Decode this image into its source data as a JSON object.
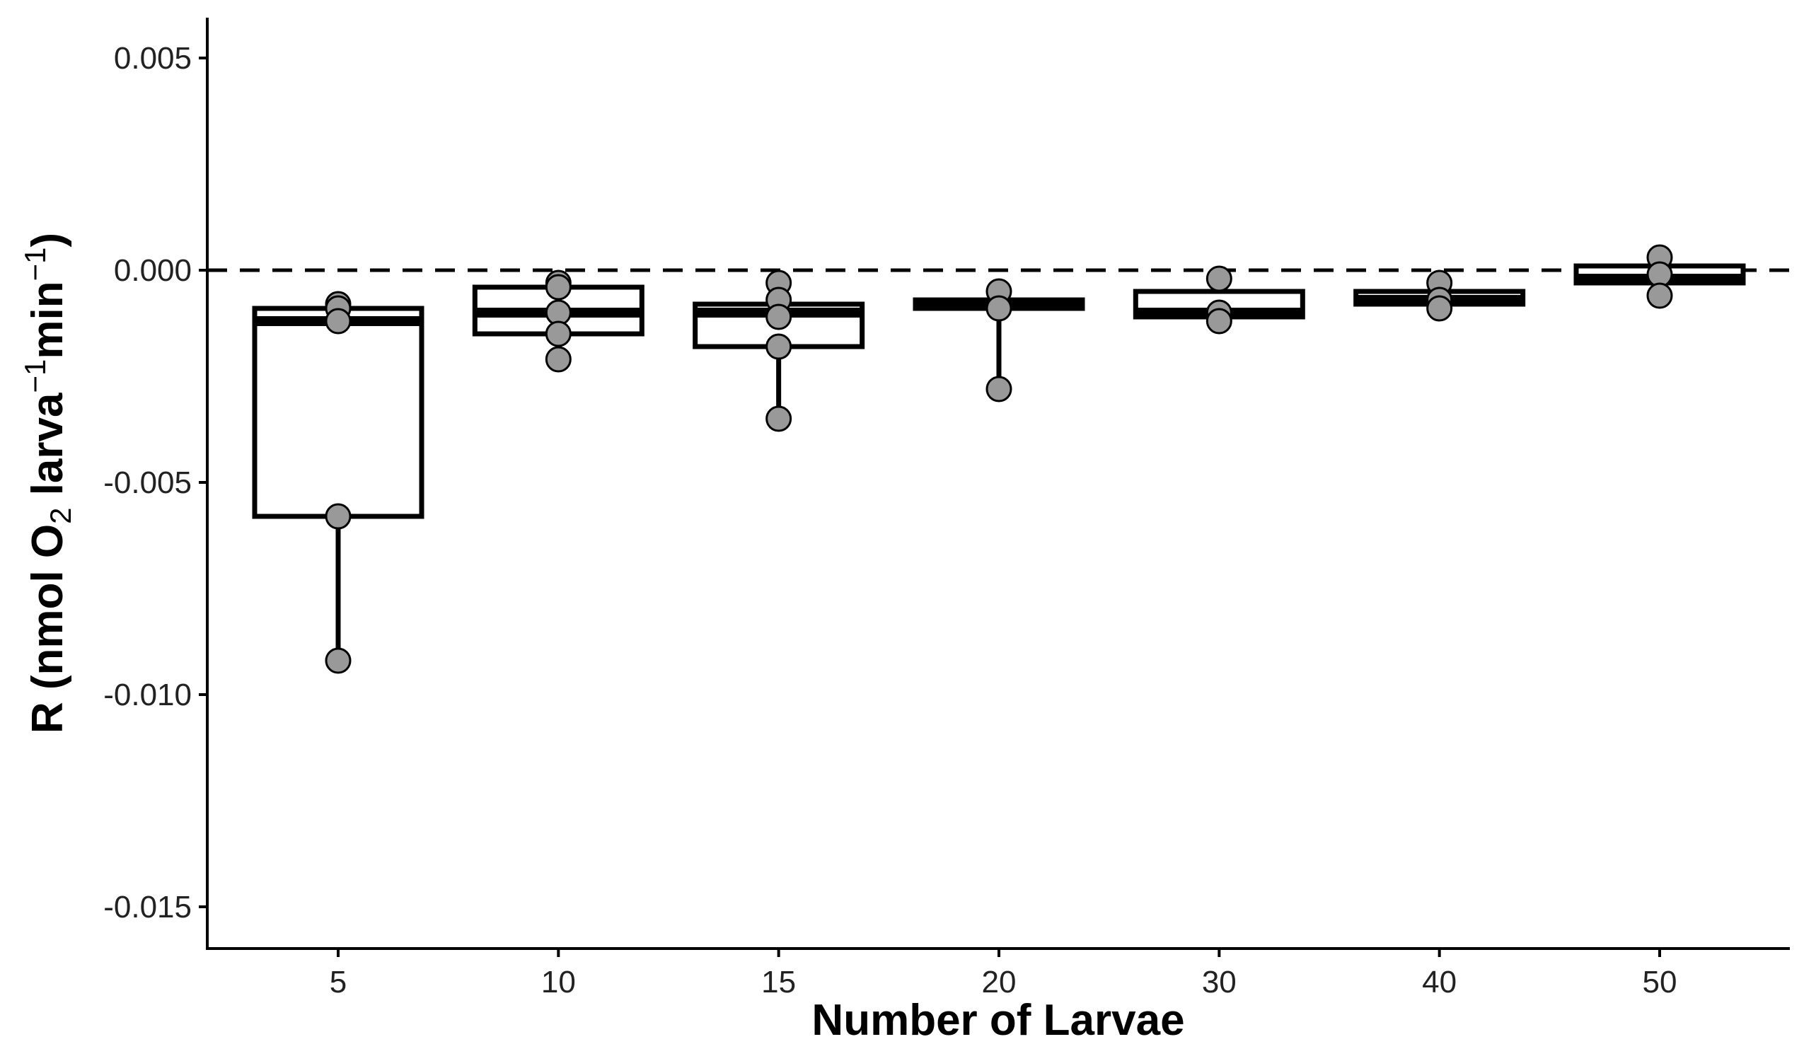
{
  "chart_data": {
    "type": "boxplot",
    "xlabel": "Number of Larvae",
    "ylabel": {
      "main": "R (nmol O",
      "sub": "2",
      "mid": " larva",
      "sup1": "−1",
      "mid2": "min",
      "sup2": "−1",
      "end": ")"
    },
    "ylim": [
      -0.016,
      0.006
    ],
    "yticks": [
      0.005,
      0.0,
      -0.005,
      -0.01,
      -0.015
    ],
    "ytick_labels": [
      "0.005",
      "0.000",
      "-0.005",
      "-0.010",
      "-0.015"
    ],
    "categories": [
      "5",
      "10",
      "15",
      "20",
      "30",
      "40",
      "50"
    ],
    "reference_line": {
      "y": 0.0,
      "style": "dashed"
    },
    "grid": false,
    "boxes": [
      {
        "category": "5",
        "q1": -0.0058,
        "median": -0.0012,
        "q3": -0.0009,
        "whisker_low": -0.0092,
        "whisker_high": -0.0008
      },
      {
        "category": "10",
        "q1": -0.0015,
        "median": -0.001,
        "q3": -0.0004,
        "whisker_low": -0.0021,
        "whisker_high": -0.0003
      },
      {
        "category": "15",
        "q1": -0.0018,
        "median": -0.001,
        "q3": -0.0008,
        "whisker_low": -0.0035,
        "whisker_high": -0.0003
      },
      {
        "category": "20",
        "q1": -0.0009,
        "median": -0.0008,
        "q3": -0.0007,
        "whisker_low": -0.0028,
        "whisker_high": -0.0005
      },
      {
        "category": "30",
        "q1": -0.0011,
        "median": -0.001,
        "q3": -0.0005,
        "whisker_low": -0.0012,
        "whisker_high": -0.0002
      },
      {
        "category": "40",
        "q1": -0.0008,
        "median": -0.0007,
        "q3": -0.0005,
        "whisker_low": -0.0009,
        "whisker_high": -0.0003
      },
      {
        "category": "50",
        "q1": -0.0003,
        "median": -0.0002,
        "q3": 0.0001,
        "whisker_low": -0.0006,
        "whisker_high": 0.0003
      }
    ],
    "points": [
      {
        "category": "5",
        "values": [
          -0.0008,
          -0.0009,
          -0.0012,
          -0.0058,
          -0.0092
        ]
      },
      {
        "category": "10",
        "values": [
          -0.0003,
          -0.0004,
          -0.001,
          -0.0015,
          -0.0021
        ]
      },
      {
        "category": "15",
        "values": [
          -0.0003,
          -0.0007,
          -0.0011,
          -0.0018,
          -0.0035
        ]
      },
      {
        "category": "20",
        "values": [
          -0.0005,
          -0.0009,
          -0.0028
        ]
      },
      {
        "category": "30",
        "values": [
          -0.0002,
          -0.001,
          -0.0012
        ]
      },
      {
        "category": "40",
        "values": [
          -0.0003,
          -0.0007,
          -0.0009
        ]
      },
      {
        "category": "50",
        "values": [
          0.0003,
          -0.0001,
          -0.0006
        ]
      }
    ],
    "colors": {
      "box_stroke": "#000000",
      "box_fill": "#ffffff",
      "point_fill": "#999999",
      "point_stroke": "#000000",
      "axis": "#000000"
    }
  }
}
